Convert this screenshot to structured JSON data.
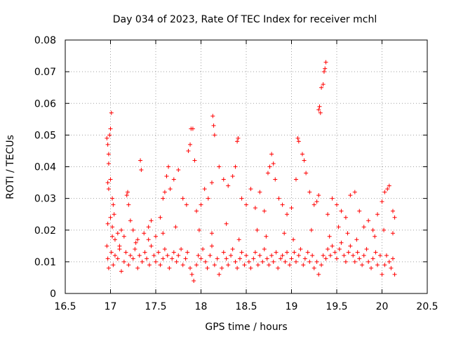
{
  "chart_data": {
    "type": "scatter",
    "title": "Day 034 of 2023, Rate Of TEC Index for receiver mchl",
    "xlabel": "GPS time / hours",
    "ylabel": "ROTI / TECUs",
    "xlim": [
      16.5,
      20.5
    ],
    "ylim": [
      0,
      0.08
    ],
    "xticks": [
      "16.5",
      "17",
      "17.5",
      "18",
      "18.5",
      "19",
      "19.5",
      "20",
      "20.5"
    ],
    "yticks": [
      "0",
      "0.01",
      "0.02",
      "0.03",
      "0.04",
      "0.05",
      "0.06",
      "0.07",
      "0.08"
    ],
    "grid": true,
    "marker": "+",
    "color": "#ff0000",
    "series": [
      {
        "name": "ROTI",
        "points": [
          [
            16.96,
            0.049
          ],
          [
            16.97,
            0.047
          ],
          [
            16.98,
            0.044
          ],
          [
            16.98,
            0.041
          ],
          [
            16.99,
            0.05
          ],
          [
            17.0,
            0.052
          ],
          [
            17.01,
            0.057
          ],
          [
            16.97,
            0.035
          ],
          [
            16.98,
            0.033
          ],
          [
            17.0,
            0.036
          ],
          [
            17.02,
            0.03
          ],
          [
            17.03,
            0.028
          ],
          [
            17.04,
            0.025
          ],
          [
            16.97,
            0.022
          ],
          [
            17.0,
            0.024
          ],
          [
            17.02,
            0.021
          ],
          [
            17.05,
            0.017
          ],
          [
            17.08,
            0.019
          ],
          [
            17.1,
            0.015
          ],
          [
            17.15,
            0.018
          ],
          [
            17.18,
            0.031
          ],
          [
            17.19,
            0.032
          ],
          [
            17.2,
            0.028
          ],
          [
            17.22,
            0.023
          ],
          [
            17.25,
            0.02
          ],
          [
            17.3,
            0.017
          ],
          [
            17.33,
            0.042
          ],
          [
            17.34,
            0.039
          ],
          [
            17.37,
            0.019
          ],
          [
            17.42,
            0.021
          ],
          [
            17.45,
            0.023
          ],
          [
            17.5,
            0.018
          ],
          [
            17.55,
            0.024
          ],
          [
            17.58,
            0.03
          ],
          [
            17.6,
            0.032
          ],
          [
            17.62,
            0.037
          ],
          [
            17.64,
            0.04
          ],
          [
            17.66,
            0.033
          ],
          [
            17.7,
            0.036
          ],
          [
            17.75,
            0.039
          ],
          [
            17.8,
            0.03
          ],
          [
            17.84,
            0.028
          ],
          [
            17.86,
            0.045
          ],
          [
            17.88,
            0.047
          ],
          [
            17.89,
            0.052
          ],
          [
            17.91,
            0.052
          ],
          [
            17.93,
            0.042
          ],
          [
            17.95,
            0.026
          ],
          [
            18.0,
            0.028
          ],
          [
            18.04,
            0.033
          ],
          [
            18.08,
            0.03
          ],
          [
            18.12,
            0.035
          ],
          [
            18.13,
            0.056
          ],
          [
            18.14,
            0.053
          ],
          [
            18.15,
            0.05
          ],
          [
            18.2,
            0.04
          ],
          [
            18.25,
            0.036
          ],
          [
            18.3,
            0.034
          ],
          [
            18.35,
            0.037
          ],
          [
            18.38,
            0.04
          ],
          [
            18.4,
            0.048
          ],
          [
            18.41,
            0.049
          ],
          [
            18.45,
            0.03
          ],
          [
            18.5,
            0.028
          ],
          [
            18.55,
            0.033
          ],
          [
            18.6,
            0.027
          ],
          [
            18.65,
            0.032
          ],
          [
            18.7,
            0.026
          ],
          [
            18.74,
            0.038
          ],
          [
            18.76,
            0.04
          ],
          [
            18.78,
            0.044
          ],
          [
            18.8,
            0.041
          ],
          [
            18.82,
            0.036
          ],
          [
            18.86,
            0.03
          ],
          [
            18.9,
            0.028
          ],
          [
            18.95,
            0.025
          ],
          [
            19.0,
            0.027
          ],
          [
            19.05,
            0.036
          ],
          [
            19.07,
            0.049
          ],
          [
            19.08,
            0.048
          ],
          [
            19.12,
            0.044
          ],
          [
            19.14,
            0.042
          ],
          [
            19.16,
            0.038
          ],
          [
            19.2,
            0.032
          ],
          [
            19.25,
            0.028
          ],
          [
            19.28,
            0.029
          ],
          [
            19.3,
            0.031
          ],
          [
            19.3,
            0.058
          ],
          [
            19.31,
            0.059
          ],
          [
            19.32,
            0.057
          ],
          [
            19.33,
            0.065
          ],
          [
            19.35,
            0.066
          ],
          [
            19.36,
            0.07
          ],
          [
            19.37,
            0.071
          ],
          [
            19.38,
            0.073
          ],
          [
            19.4,
            0.025
          ],
          [
            19.45,
            0.03
          ],
          [
            19.5,
            0.028
          ],
          [
            19.55,
            0.026
          ],
          [
            19.6,
            0.024
          ],
          [
            19.65,
            0.031
          ],
          [
            19.7,
            0.032
          ],
          [
            19.75,
            0.026
          ],
          [
            19.8,
            0.021
          ],
          [
            19.85,
            0.023
          ],
          [
            19.9,
            0.02
          ],
          [
            19.95,
            0.025
          ],
          [
            20.0,
            0.029
          ],
          [
            20.03,
            0.032
          ],
          [
            20.06,
            0.033
          ],
          [
            20.08,
            0.034
          ],
          [
            20.12,
            0.026
          ],
          [
            20.14,
            0.024
          ],
          [
            16.96,
            0.015
          ],
          [
            16.97,
            0.011
          ],
          [
            16.98,
            0.008
          ],
          [
            17.01,
            0.013
          ],
          [
            17.03,
            0.009
          ],
          [
            17.05,
            0.012
          ],
          [
            17.08,
            0.011
          ],
          [
            17.1,
            0.014
          ],
          [
            17.12,
            0.007
          ],
          [
            17.15,
            0.01
          ],
          [
            17.17,
            0.013
          ],
          [
            17.2,
            0.009
          ],
          [
            17.22,
            0.012
          ],
          [
            17.25,
            0.011
          ],
          [
            17.27,
            0.014
          ],
          [
            17.3,
            0.008
          ],
          [
            17.32,
            0.012
          ],
          [
            17.35,
            0.01
          ],
          [
            17.38,
            0.013
          ],
          [
            17.4,
            0.011
          ],
          [
            17.43,
            0.009
          ],
          [
            17.45,
            0.015
          ],
          [
            17.48,
            0.012
          ],
          [
            17.5,
            0.01
          ],
          [
            17.53,
            0.013
          ],
          [
            17.55,
            0.009
          ],
          [
            17.58,
            0.011
          ],
          [
            17.6,
            0.014
          ],
          [
            17.63,
            0.012
          ],
          [
            17.65,
            0.008
          ],
          [
            17.68,
            0.011
          ],
          [
            17.7,
            0.013
          ],
          [
            17.73,
            0.01
          ],
          [
            17.75,
            0.012
          ],
          [
            17.78,
            0.014
          ],
          [
            17.8,
            0.009
          ],
          [
            17.83,
            0.011
          ],
          [
            17.85,
            0.013
          ],
          [
            17.88,
            0.008
          ],
          [
            17.9,
            0.006
          ],
          [
            17.92,
            0.004
          ],
          [
            17.95,
            0.009
          ],
          [
            17.97,
            0.012
          ],
          [
            18.0,
            0.011
          ],
          [
            18.02,
            0.014
          ],
          [
            18.05,
            0.01
          ],
          [
            18.07,
            0.008
          ],
          [
            18.1,
            0.012
          ],
          [
            18.12,
            0.015
          ],
          [
            18.15,
            0.009
          ],
          [
            18.18,
            0.011
          ],
          [
            18.2,
            0.006
          ],
          [
            18.23,
            0.008
          ],
          [
            18.25,
            0.013
          ],
          [
            18.28,
            0.011
          ],
          [
            18.3,
            0.009
          ],
          [
            18.33,
            0.012
          ],
          [
            18.35,
            0.014
          ],
          [
            18.38,
            0.01
          ],
          [
            18.4,
            0.008
          ],
          [
            18.43,
            0.011
          ],
          [
            18.45,
            0.013
          ],
          [
            18.48,
            0.009
          ],
          [
            18.5,
            0.012
          ],
          [
            18.53,
            0.01
          ],
          [
            18.55,
            0.008
          ],
          [
            18.58,
            0.011
          ],
          [
            18.6,
            0.013
          ],
          [
            18.63,
            0.009
          ],
          [
            18.65,
            0.012
          ],
          [
            18.68,
            0.01
          ],
          [
            18.7,
            0.014
          ],
          [
            18.73,
            0.011
          ],
          [
            18.75,
            0.009
          ],
          [
            18.78,
            0.012
          ],
          [
            18.8,
            0.01
          ],
          [
            18.83,
            0.013
          ],
          [
            18.85,
            0.008
          ],
          [
            18.88,
            0.011
          ],
          [
            18.9,
            0.012
          ],
          [
            18.93,
            0.01
          ],
          [
            18.95,
            0.013
          ],
          [
            18.98,
            0.009
          ],
          [
            19.0,
            0.011
          ],
          [
            19.03,
            0.013
          ],
          [
            19.05,
            0.01
          ],
          [
            19.08,
            0.012
          ],
          [
            19.1,
            0.014
          ],
          [
            19.13,
            0.009
          ],
          [
            19.15,
            0.011
          ],
          [
            19.18,
            0.013
          ],
          [
            19.2,
            0.01
          ],
          [
            19.23,
            0.012
          ],
          [
            19.25,
            0.008
          ],
          [
            19.28,
            0.01
          ],
          [
            19.3,
            0.006
          ],
          [
            19.33,
            0.009
          ],
          [
            19.35,
            0.012
          ],
          [
            19.38,
            0.011
          ],
          [
            19.4,
            0.014
          ],
          [
            19.43,
            0.012
          ],
          [
            19.45,
            0.015
          ],
          [
            19.48,
            0.013
          ],
          [
            19.5,
            0.011
          ],
          [
            19.53,
            0.014
          ],
          [
            19.55,
            0.016
          ],
          [
            19.58,
            0.012
          ],
          [
            19.6,
            0.01
          ],
          [
            19.63,
            0.013
          ],
          [
            19.65,
            0.015
          ],
          [
            19.68,
            0.012
          ],
          [
            19.7,
            0.01
          ],
          [
            19.73,
            0.013
          ],
          [
            19.75,
            0.011
          ],
          [
            19.78,
            0.009
          ],
          [
            19.8,
            0.012
          ],
          [
            19.83,
            0.014
          ],
          [
            19.85,
            0.01
          ],
          [
            19.88,
            0.008
          ],
          [
            19.9,
            0.011
          ],
          [
            19.93,
            0.013
          ],
          [
            19.95,
            0.009
          ],
          [
            19.98,
            0.012
          ],
          [
            20.0,
            0.006
          ],
          [
            20.03,
            0.009
          ],
          [
            20.05,
            0.012
          ],
          [
            20.08,
            0.01
          ],
          [
            20.1,
            0.008
          ],
          [
            20.12,
            0.011
          ],
          [
            20.14,
            0.006
          ],
          [
            17.02,
            0.018
          ],
          [
            17.12,
            0.02
          ],
          [
            17.28,
            0.016
          ],
          [
            17.42,
            0.017
          ],
          [
            17.58,
            0.019
          ],
          [
            17.72,
            0.021
          ],
          [
            17.98,
            0.02
          ],
          [
            18.12,
            0.019
          ],
          [
            18.28,
            0.022
          ],
          [
            18.42,
            0.017
          ],
          [
            18.62,
            0.02
          ],
          [
            18.72,
            0.018
          ],
          [
            18.92,
            0.019
          ],
          [
            19.02,
            0.017
          ],
          [
            19.22,
            0.02
          ],
          [
            19.42,
            0.018
          ],
          [
            19.52,
            0.021
          ],
          [
            19.62,
            0.019
          ],
          [
            19.72,
            0.017
          ],
          [
            19.92,
            0.018
          ],
          [
            20.02,
            0.02
          ],
          [
            20.12,
            0.019
          ]
        ]
      }
    ]
  }
}
